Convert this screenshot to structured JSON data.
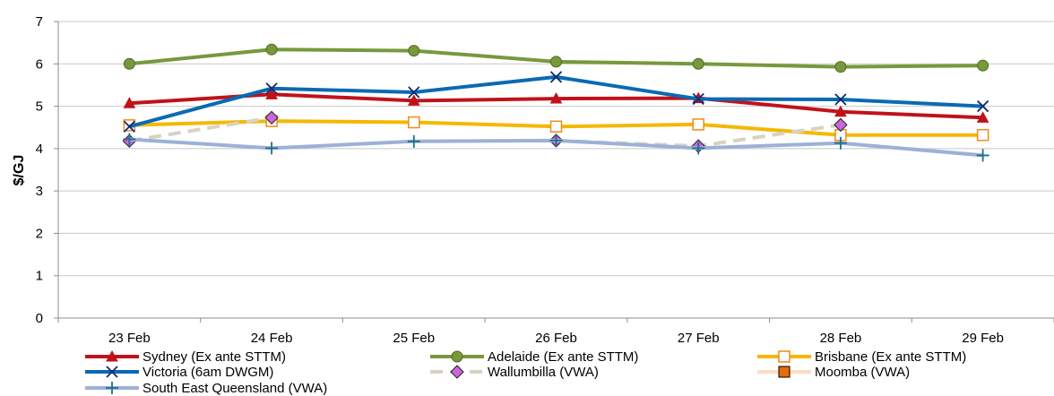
{
  "chart_data": {
    "type": "line",
    "ylabel": "$/GJ",
    "ylim": [
      0,
      7
    ],
    "yticks": [
      0,
      1,
      2,
      3,
      4,
      5,
      6,
      7
    ],
    "categories": [
      "23 Feb",
      "24 Feb",
      "25 Feb",
      "26 Feb",
      "27 Feb",
      "28 Feb",
      "29 Feb"
    ],
    "grid": true,
    "legend_position": "bottom",
    "series": [
      {
        "name": "Sydney (Ex ante STTM)",
        "color": "#c0121b",
        "marker": "triangle",
        "dash": "solid",
        "values": [
          5.07,
          5.28,
          5.13,
          5.18,
          5.19,
          4.87,
          4.73
        ]
      },
      {
        "name": "Adelaide (Ex ante STTM)",
        "color": "#77993b",
        "marker": "circle",
        "dash": "solid",
        "values": [
          6.0,
          6.34,
          6.31,
          6.05,
          6.0,
          5.93,
          5.96
        ]
      },
      {
        "name": "Brisbane (Ex ante STTM)",
        "color": "#f5b800",
        "marker": "square-open",
        "dash": "solid",
        "values": [
          4.55,
          4.65,
          4.62,
          4.52,
          4.57,
          4.32,
          4.32
        ]
      },
      {
        "name": "Victoria (6am DWGM)",
        "color": "#0a6ab3",
        "marker": "x",
        "dash": "solid",
        "values": [
          4.52,
          5.42,
          5.33,
          5.69,
          5.17,
          5.16,
          5.0
        ]
      },
      {
        "name": "Wallumbilla (VWA)",
        "color": "#d9d2c1",
        "marker": "diamond",
        "markerFill": "#cc66dd",
        "dash": "dashed",
        "values": [
          4.18,
          4.73,
          null,
          4.19,
          4.06,
          4.56,
          null
        ]
      },
      {
        "name": "Moomba (VWA)",
        "color": "#fcdcc6",
        "marker": "square-filled",
        "markerFill": "#e46c0a",
        "dash": "solid",
        "values": [
          null,
          null,
          null,
          null,
          null,
          null,
          null
        ]
      },
      {
        "name": "South East Queensland (VWA)",
        "color": "#9bb1d8",
        "marker": "plus",
        "markerColor": "#1f6f8b",
        "dash": "solid",
        "values": [
          4.22,
          4.01,
          4.17,
          4.19,
          4.01,
          4.13,
          3.84
        ]
      }
    ]
  }
}
